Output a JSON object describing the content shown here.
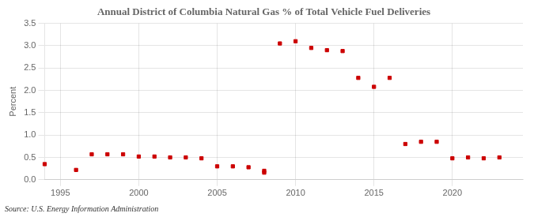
{
  "chart_data": {
    "type": "scatter",
    "title": "Annual District of Columbia Natural Gas % of Total Vehicle Fuel Deliveries",
    "y_label": "Percent",
    "annotations": [
      "Source: U.S. Energy Information Administration"
    ],
    "x": [
      1994,
      1996,
      1997,
      1998,
      1999,
      2000,
      2001,
      2002,
      2003,
      2004,
      2005,
      2006,
      2007,
      2008,
      2008,
      2009,
      2010,
      2011,
      2012,
      2013,
      2014,
      2015,
      2016,
      2017,
      2018,
      2019,
      2020,
      2021,
      2022,
      2023
    ],
    "values": [
      0.35,
      0.22,
      0.57,
      0.57,
      0.57,
      0.52,
      0.52,
      0.5,
      0.5,
      0.48,
      0.3,
      0.3,
      0.28,
      0.2,
      0.16,
      3.05,
      3.1,
      2.95,
      2.9,
      2.88,
      2.28,
      2.08,
      2.28,
      0.8,
      0.85,
      0.85,
      0.48,
      0.5,
      0.48,
      0.5
    ],
    "color": "#cc0000",
    "marker": "square",
    "xlim": [
      1994,
      2024.5
    ],
    "xticks": [
      1995,
      2000,
      2005,
      2010,
      2015,
      2020
    ],
    "ylim": [
      0,
      3.5
    ],
    "yticks": [
      {
        "value": 0.0,
        "label": "0.0"
      },
      0.5,
      {
        "value": 1.0,
        "label": "1.0"
      },
      1.5,
      {
        "value": 2.0,
        "label": "2.0"
      },
      2.5,
      {
        "value": 3.0,
        "label": "3.0"
      },
      3.5
    ],
    "grid": true
  }
}
